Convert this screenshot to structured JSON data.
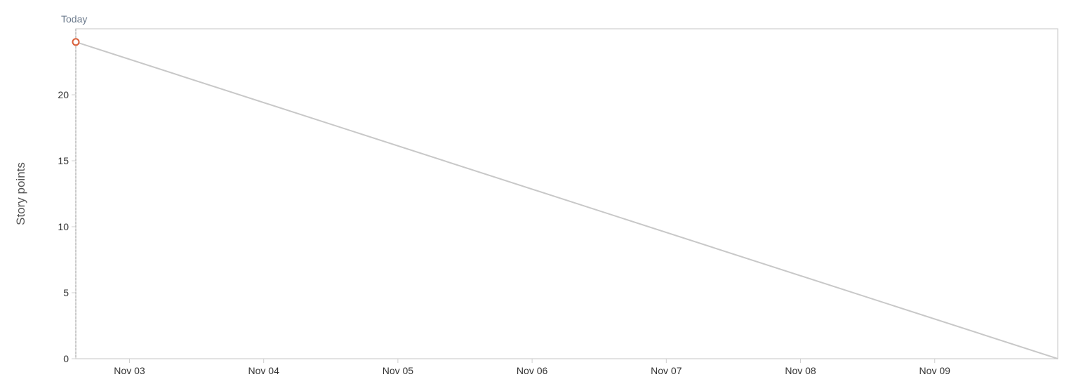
{
  "chart_data": {
    "type": "line",
    "title": "",
    "ylabel": "Story points",
    "xlabel": "",
    "today_label": "Today",
    "x_ticks": [
      "Nov 03",
      "Nov 04",
      "Nov 05",
      "Nov 06",
      "Nov 07",
      "Nov 08",
      "Nov 09"
    ],
    "y_ticks": [
      0,
      5,
      10,
      15,
      20
    ],
    "ylim": [
      0,
      25
    ],
    "xlim": [
      "2023-11-02T14:24",
      "2023-11-09T22:00"
    ],
    "today": "2023-11-02T14:24",
    "grid": false,
    "series": [
      {
        "values": [
          {
            "x": "2023-11-02T14:24",
            "y": 24
          },
          {
            "x": "2023-11-09T22:00",
            "y": 0
          }
        ]
      }
    ],
    "markers": [
      {
        "x": "2023-11-02T14:24",
        "y": 24
      }
    ],
    "colors": {
      "frame": "#cfcfcf",
      "line": "#c8c8c8",
      "today_line": "#bdbdbd",
      "marker": "#d9603b",
      "tick_text": "#333333",
      "axis_label": "#555555",
      "today_text": "#6b7a8c"
    }
  }
}
